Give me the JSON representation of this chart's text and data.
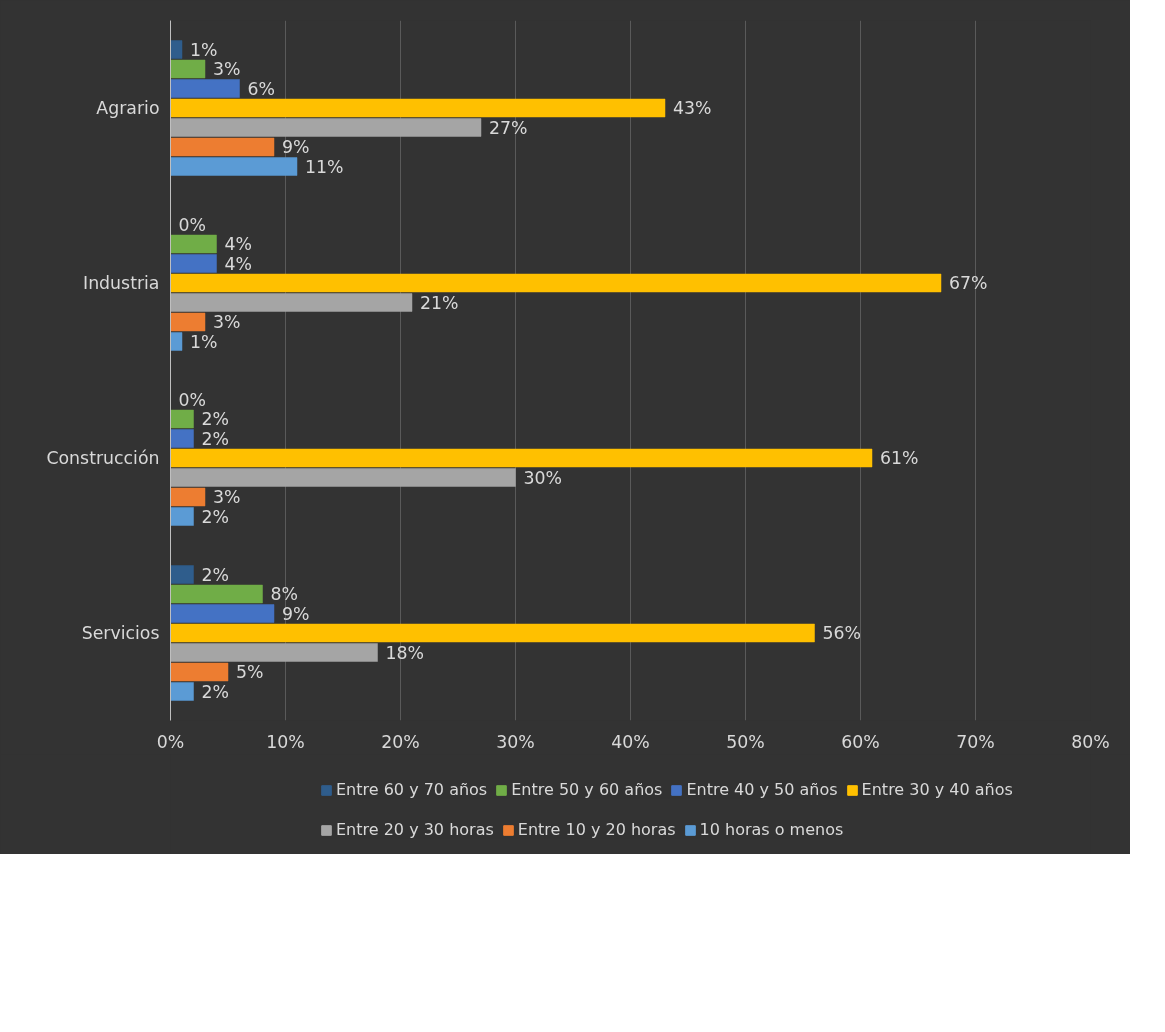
{
  "chart_data": {
    "type": "bar",
    "orientation": "horizontal",
    "categories": [
      "Agrario",
      "Industria",
      "Construcción",
      "Servicios"
    ],
    "series": [
      {
        "name": "Entre 60 y 70 años",
        "color": "#2f5d8c",
        "values": [
          1,
          0,
          0,
          2
        ],
        "value_labels": [
          "1%",
          "0%",
          "0%",
          "2%"
        ]
      },
      {
        "name": "Entre 50 y 60 años",
        "color": "#70ad47",
        "values": [
          3,
          4,
          2,
          8
        ],
        "value_labels": [
          "3%",
          "4%",
          "2%",
          "8%"
        ]
      },
      {
        "name": "Entre 40 y 50 años",
        "color": "#4472c4",
        "values": [
          6,
          4,
          2,
          9
        ],
        "value_labels": [
          "6%",
          "4%",
          "2%",
          "9%"
        ]
      },
      {
        "name": "Entre 30 y 40 años",
        "color": "#ffc000",
        "values": [
          43,
          67,
          61,
          56
        ],
        "value_labels": [
          "43%",
          "67%",
          "61%",
          "56%"
        ]
      },
      {
        "name": "Entre 20 y 30 horas",
        "color": "#a5a5a5",
        "values": [
          27,
          21,
          30,
          18
        ],
        "value_labels": [
          "27%",
          "21%",
          "30%",
          "18%"
        ]
      },
      {
        "name": "Entre 10 y 20 horas",
        "color": "#ed7d31",
        "values": [
          9,
          3,
          3,
          5
        ],
        "value_labels": [
          "9%",
          "3%",
          "3%",
          "5%"
        ]
      },
      {
        "name": "10 horas o menos",
        "color": "#5b9bd5",
        "values": [
          11,
          1,
          2,
          2
        ],
        "value_labels": [
          "11%",
          "1%",
          "2%",
          "2%"
        ]
      }
    ],
    "xlim": [
      0,
      80
    ],
    "xticks": [
      {
        "value": 0,
        "label": "0%"
      },
      {
        "value": 10,
        "label": "10%"
      },
      {
        "value": 20,
        "label": "20%"
      },
      {
        "value": 30,
        "label": "30%"
      },
      {
        "value": 40,
        "label": "40%"
      },
      {
        "value": 50,
        "label": "50%"
      },
      {
        "value": 60,
        "label": "60%"
      },
      {
        "value": 70,
        "label": "70%"
      },
      {
        "value": 80,
        "label": "80%"
      }
    ],
    "grid": "x",
    "legend": "bottom"
  }
}
